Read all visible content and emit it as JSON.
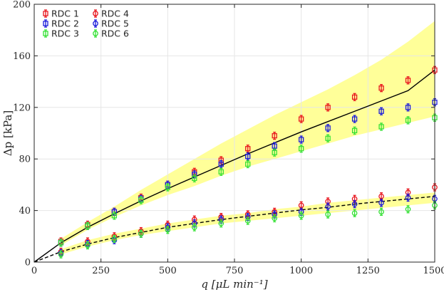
{
  "chart_data": {
    "type": "scatter",
    "title": "",
    "xlabel": "q [μL min⁻¹]",
    "ylabel": "Δp [kPa]",
    "xlim": [
      0,
      1500
    ],
    "ylim": [
      0,
      200
    ],
    "xticks": [
      0,
      250,
      500,
      750,
      1000,
      1250,
      1500
    ],
    "xtick_labels": [
      "0",
      "250",
      "500",
      "750",
      "1000",
      "1250",
      "1500"
    ],
    "yticks": [
      0,
      40,
      80,
      120,
      160,
      200
    ],
    "ytick_labels": [
      "0",
      "40",
      "80",
      "120",
      "160",
      "200"
    ],
    "grid": true,
    "legend_position": "top-left",
    "x": [
      100,
      200,
      300,
      400,
      500,
      600,
      700,
      800,
      900,
      1000,
      1100,
      1200,
      1300,
      1400,
      1500
    ],
    "series": [
      {
        "name": "RDC 1",
        "marker": "square",
        "color": "#e8141c",
        "values": [
          16,
          29,
          39,
          50,
          60,
          70,
          79,
          88,
          98,
          111,
          120,
          128,
          135,
          141,
          149
        ]
      },
      {
        "name": "RDC 2",
        "marker": "square",
        "color": "#1a1adb",
        "values": [
          15,
          28,
          39,
          49,
          60,
          68,
          76,
          82,
          90,
          95,
          104,
          111,
          117,
          120,
          124
        ]
      },
      {
        "name": "RDC 3",
        "marker": "square",
        "color": "#33e133",
        "values": [
          15,
          28,
          36,
          48,
          58,
          65,
          70,
          76,
          85,
          88,
          96,
          102,
          105,
          110,
          112
        ]
      },
      {
        "name": "RDC 4",
        "marker": "circle",
        "color": "#e8141c",
        "values": [
          8,
          16,
          20,
          24,
          29,
          33,
          35,
          37,
          39,
          44,
          47,
          49,
          51,
          54,
          58
        ]
      },
      {
        "name": "RDC 5",
        "marker": "circle",
        "color": "#1a1adb",
        "values": [
          7,
          14,
          17,
          22,
          27,
          30,
          33,
          35,
          37,
          39,
          43,
          45,
          46,
          50,
          49
        ]
      },
      {
        "name": "RDC 6",
        "marker": "circle",
        "color": "#33e133",
        "values": [
          6,
          13,
          18,
          22,
          25,
          27,
          30,
          32,
          34,
          36,
          37,
          38,
          39,
          41,
          44
        ]
      }
    ],
    "model_curves": [
      {
        "name": "model-upper",
        "style": "solid",
        "color": "#000000",
        "x": [
          0,
          100,
          200,
          300,
          400,
          500,
          600,
          700,
          800,
          900,
          1000,
          1100,
          1200,
          1300,
          1400,
          1500
        ],
        "y": [
          0,
          15,
          27,
          37.5,
          47.5,
          57,
          66,
          75,
          84,
          92.5,
          101,
          109,
          117,
          125,
          133,
          149
        ]
      },
      {
        "name": "model-lower",
        "style": "dashed",
        "color": "#000000",
        "x": [
          0,
          100,
          200,
          300,
          400,
          500,
          600,
          700,
          800,
          900,
          1000,
          1100,
          1200,
          1300,
          1400,
          1500
        ],
        "y": [
          0,
          8,
          14,
          19,
          23,
          27,
          30,
          33,
          35.5,
          38,
          40.5,
          42.5,
          45,
          47,
          49,
          51
        ]
      }
    ],
    "uncertainty_bands": [
      {
        "name": "band-upper",
        "color": "#ffff99",
        "x": [
          100,
          200,
          300,
          400,
          500,
          600,
          700,
          800,
          900,
          1000,
          1100,
          1200,
          1300,
          1400,
          1500
        ],
        "low": [
          13,
          25,
          35,
          44,
          52,
          59,
          67,
          74,
          80,
          86,
          92,
          98,
          103,
          108,
          113
        ],
        "high": [
          18,
          31,
          43,
          56,
          68,
          80,
          92,
          103,
          114,
          124,
          134,
          145,
          157,
          171,
          187
        ]
      },
      {
        "name": "band-lower",
        "color": "#ffff99",
        "x": [
          100,
          200,
          300,
          400,
          500,
          600,
          700,
          800,
          900,
          1000,
          1100,
          1200,
          1300,
          1400,
          1500
        ],
        "low": [
          6,
          12,
          17,
          21,
          24,
          27,
          30,
          32,
          34,
          36,
          38,
          40,
          42,
          44,
          46
        ],
        "high": [
          10,
          17,
          22,
          26,
          30,
          33,
          36,
          38,
          41,
          43,
          46,
          48,
          50,
          52,
          54
        ]
      }
    ]
  }
}
